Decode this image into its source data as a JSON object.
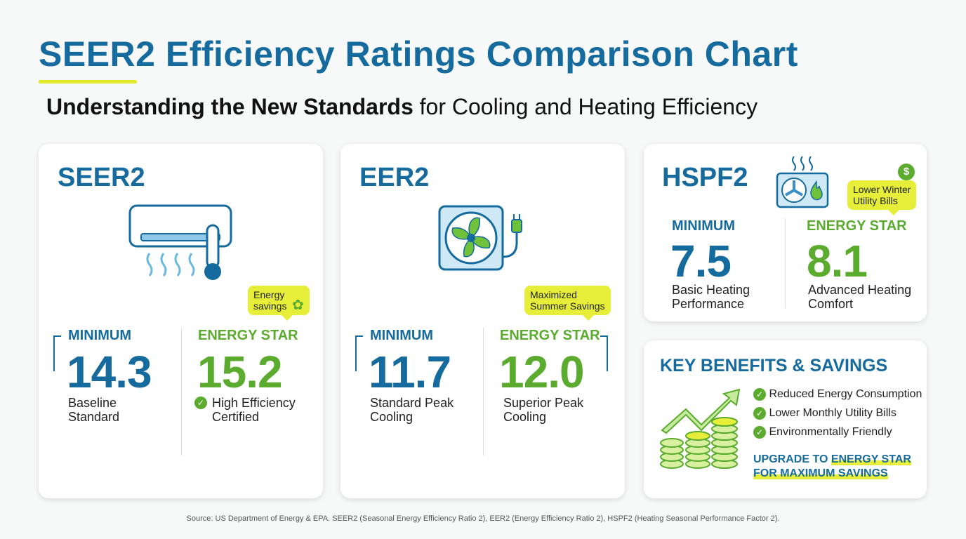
{
  "header": {
    "title": "SEER2 Efficiency Ratings Comparison Chart",
    "subtitle_bold": "Understanding the New Standards",
    "subtitle_rest": " for Cooling and Heating Efficiency"
  },
  "colors": {
    "blue": "#156a9e",
    "green": "#5aab2e",
    "yellow": "#e6ee3a"
  },
  "seer2": {
    "title": "SEER2",
    "icon": "air-conditioner-thermometer-icon",
    "tooltip": "Energy savings",
    "min_label": "MINIMUM",
    "min_value": "14.3",
    "min_desc1": "Baseline",
    "min_desc2": "Standard",
    "star_label": "ENERGY STAR",
    "star_value": "15.2",
    "star_desc1": "High Efficiency",
    "star_desc2": "Certified"
  },
  "eer2": {
    "title": "EER2",
    "icon": "fan-plug-icon",
    "tooltip1": "Maximized",
    "tooltip2": "Summer Savings",
    "min_label": "MINIMUM",
    "min_value": "11.7",
    "min_desc1": "Standard Peak",
    "min_desc2": "Cooling",
    "star_label": "ENERGY STAR",
    "star_value": "12.0",
    "star_desc1": "Superior Peak",
    "star_desc2": "Cooling"
  },
  "hspf2": {
    "title": "HSPF2",
    "icon": "heat-pump-icon",
    "tooltip1": "Lower Winter",
    "tooltip2": "Utility Bills",
    "min_label": "MINIMUM",
    "min_value": "7.5",
    "min_desc1": "Basic Heating",
    "min_desc2": "Performance",
    "star_label": "ENERGY STAR",
    "star_value": "8.1",
    "star_desc1": "Advanced Heating",
    "star_desc2": "Comfort"
  },
  "benefits": {
    "title": "KEY BENEFITS & SAVINGS",
    "items": [
      "Reduced Energy Consumption",
      "Lower Monthly Utility Bills",
      "Environmentally Friendly"
    ],
    "cta1": "UPGRADE TO ",
    "cta2": "ENERGY STAR",
    "cta3": "FOR MAXIMUM SAVINGS"
  },
  "source": "Source: US Department of Energy & EPA. SEER2 (Seasonal Energy Efficiency Ratio 2), EER2 (Energy Efficiency Ratio 2), HSPF2 (Heating Seasonal Performance Factor 2)."
}
